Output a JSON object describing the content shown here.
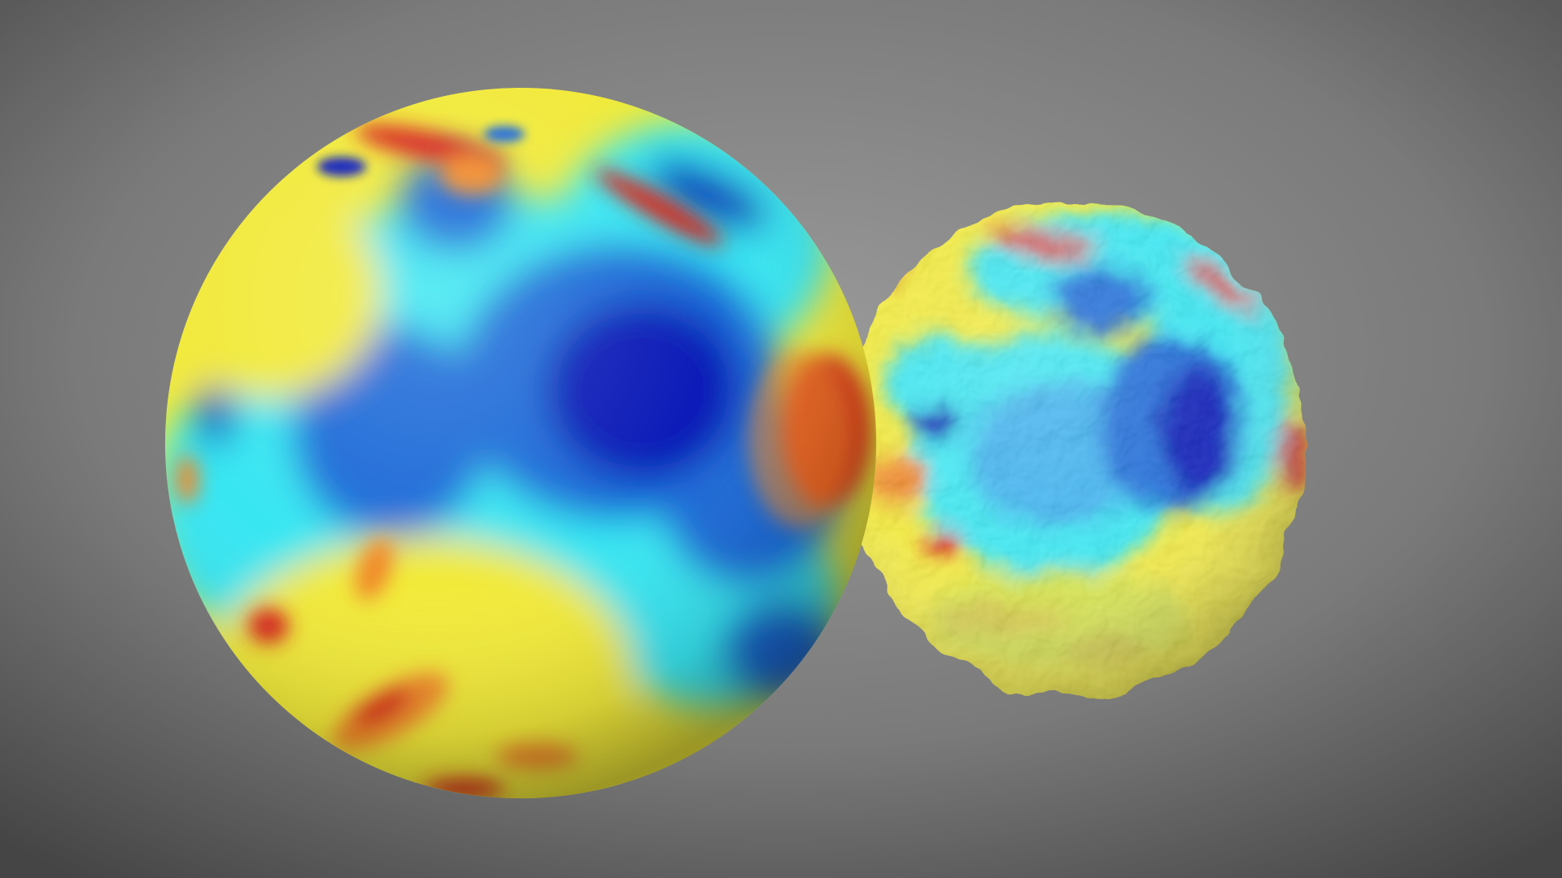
{
  "scene": {
    "background_center": "#9a9a9a",
    "background_edge": "#454545",
    "palette": {
      "dark_blue": "#0a1fb8",
      "blue": "#1f6ad8",
      "light_blue": "#3ab0ee",
      "cyan": "#38e6f2",
      "yellow_green": "#c8e04a",
      "yellow": "#f2ea3a",
      "orange": "#f08a2a",
      "red": "#d8281a"
    },
    "objects": [
      {
        "name": "smooth-sphere"
      },
      {
        "name": "bumpy-sphere"
      }
    ]
  }
}
